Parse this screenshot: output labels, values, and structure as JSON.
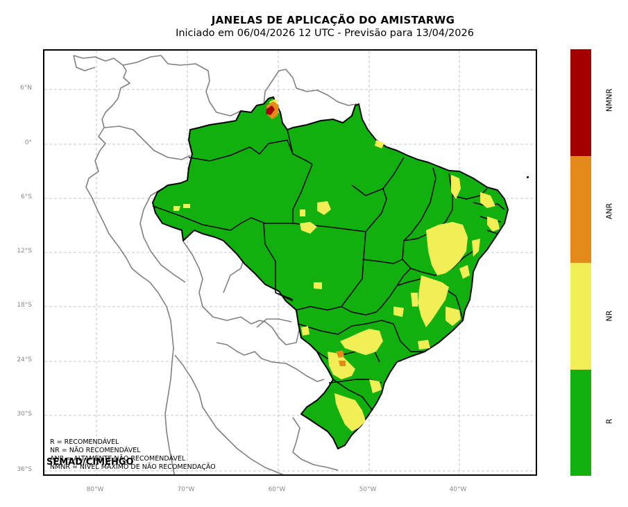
{
  "title": "JANELAS DE APLICAÇÃO DO AMISTARWG",
  "subtitle": "Iniciado em 06/04/2026 12 UTC - Previsão para 13/04/2026",
  "lat_ticks": [
    "6°N",
    "0°",
    "6°S",
    "12°S",
    "18°S",
    "24°S",
    "30°S",
    "36°S"
  ],
  "lon_ticks": [
    "80°W",
    "70°W",
    "60°W",
    "50°W",
    "40°W"
  ],
  "legend_notes": [
    "R = RECOMENDÁVEL",
    "NR = NÃO RECOMENDÁVEL",
    "ANR = ALTAMENTE NÃO RECOMENDÁVEL",
    "NMNR = NÍVEL MÁXIMO DE NÃO RECOMENDAÇÃO"
  ],
  "credit": "SEMAD/CIMEHGO",
  "colorbar": [
    {
      "label": "NMNR",
      "color": "#a50000"
    },
    {
      "label": "ANR",
      "color": "#e38a1a"
    },
    {
      "label": "NR",
      "color": "#f2ee55"
    },
    {
      "label": "R",
      "color": "#12b00f"
    }
  ]
}
